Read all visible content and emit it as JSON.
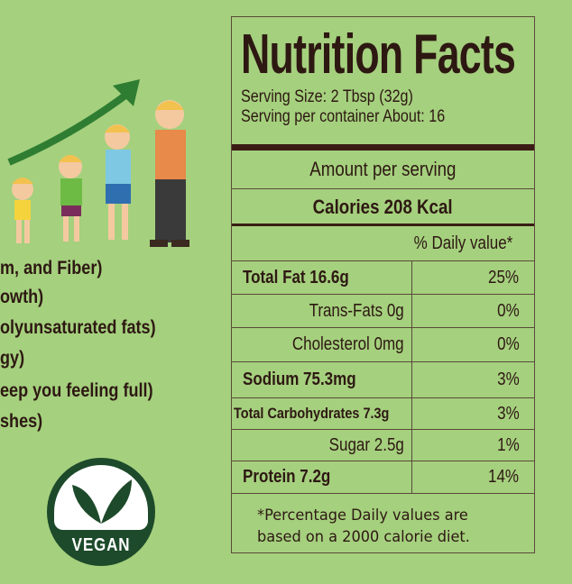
{
  "benefits": [
    "m, and Fiber)",
    "owth)",
    "olyunsaturated fats)",
    "gy)",
    "eep you feeling full)",
    "shes)"
  ],
  "vegan_badge": {
    "label": "VEGAN",
    "color": "#1d4a2a"
  },
  "nutrition": {
    "title": "Nutrition Facts",
    "serving_size": "Serving Size: 2 Tbsp (32g)",
    "servings_per_container": "Serving per container About: 16",
    "amount_per_serving": "Amount per serving",
    "calories": "Calories 208 Kcal",
    "daily_value_header": "% Daily value*",
    "rows": [
      {
        "label": "Total Fat 16.6g",
        "value": "25%",
        "bold": true,
        "indent": false
      },
      {
        "label": "Trans-Fats 0g",
        "value": "0%",
        "bold": false,
        "indent": true
      },
      {
        "label": "Cholesterol 0mg",
        "value": "0%",
        "bold": false,
        "indent": true
      },
      {
        "label": "Sodium 75.3mg",
        "value": "3%",
        "bold": true,
        "indent": false
      },
      {
        "label": "Total Carbohydrates 7.3g",
        "value": "3%",
        "bold": true,
        "indent": false
      },
      {
        "label": "Sugar 2.5g",
        "value": "1%",
        "bold": false,
        "indent": true
      },
      {
        "label": "Protein 7.2g",
        "value": "14%",
        "bold": true,
        "indent": false
      }
    ],
    "footnote_line1": "*Percentage Daily values are",
    "footnote_line2": "based on a 2000 calorie diet."
  },
  "colors": {
    "background": "#a5d07e",
    "text": "#2d1812",
    "arrow": "#2e7d32"
  }
}
